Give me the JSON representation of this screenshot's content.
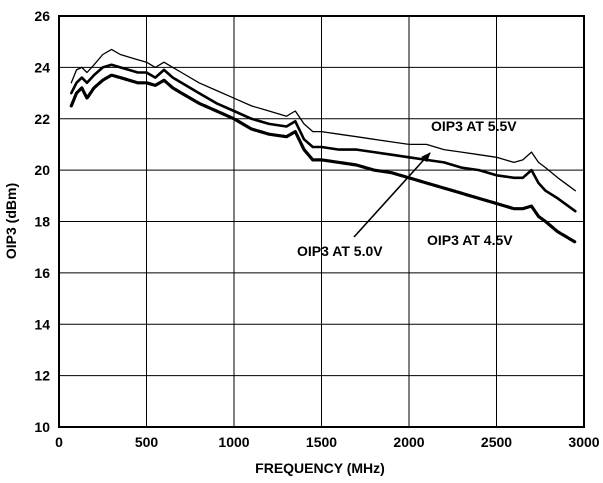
{
  "chart_data": {
    "type": "line",
    "title": "",
    "xlabel": "FREQUENCY (MHz)",
    "ylabel": "OIP3 (dBm)",
    "xlim": [
      0,
      3000
    ],
    "ylim": [
      10,
      26
    ],
    "xticks": [
      "0",
      "500",
      "1000",
      "1500",
      "2000",
      "2500",
      "3000"
    ],
    "yticks": [
      "10",
      "12",
      "14",
      "16",
      "18",
      "20",
      "22",
      "24",
      "26"
    ],
    "grid": true,
    "series": [
      {
        "name": "OIP3 AT 5.5V",
        "x": [
          70,
          100,
          130,
          160,
          200,
          250,
          300,
          350,
          400,
          450,
          500,
          550,
          600,
          650,
          700,
          800,
          900,
          1000,
          1100,
          1200,
          1300,
          1350,
          1400,
          1450,
          1500,
          1600,
          1700,
          1800,
          1900,
          2000,
          2100,
          2200,
          2300,
          2400,
          2500,
          2600,
          2650,
          2700,
          2740,
          2780,
          2850,
          2950
        ],
        "y": [
          23.4,
          23.9,
          24.0,
          23.8,
          24.1,
          24.5,
          24.7,
          24.5,
          24.4,
          24.3,
          24.2,
          24.0,
          24.2,
          24.0,
          23.8,
          23.4,
          23.1,
          22.8,
          22.5,
          22.3,
          22.1,
          22.3,
          21.8,
          21.5,
          21.5,
          21.4,
          21.3,
          21.2,
          21.1,
          21.0,
          21.0,
          20.8,
          20.7,
          20.6,
          20.5,
          20.3,
          20.4,
          20.7,
          20.3,
          20.1,
          19.7,
          19.2
        ]
      },
      {
        "name": "OIP3 AT 5.0V",
        "x": [
          70,
          100,
          130,
          160,
          200,
          250,
          300,
          350,
          400,
          450,
          500,
          550,
          600,
          650,
          700,
          800,
          900,
          1000,
          1100,
          1200,
          1300,
          1350,
          1400,
          1450,
          1500,
          1600,
          1700,
          1800,
          1900,
          2000,
          2100,
          2200,
          2300,
          2400,
          2500,
          2600,
          2650,
          2700,
          2740,
          2780,
          2850,
          2950
        ],
        "y": [
          23.0,
          23.4,
          23.6,
          23.4,
          23.7,
          24.0,
          24.1,
          24.0,
          23.9,
          23.8,
          23.8,
          23.6,
          23.9,
          23.6,
          23.4,
          23.0,
          22.6,
          22.3,
          22.0,
          21.8,
          21.7,
          21.9,
          21.2,
          20.9,
          20.9,
          20.8,
          20.8,
          20.7,
          20.6,
          20.5,
          20.4,
          20.3,
          20.1,
          20.0,
          19.8,
          19.7,
          19.7,
          20.0,
          19.5,
          19.2,
          18.9,
          18.4
        ]
      },
      {
        "name": "OIP3 AT 4.5V",
        "x": [
          70,
          100,
          130,
          160,
          200,
          250,
          300,
          350,
          400,
          450,
          500,
          550,
          600,
          650,
          700,
          800,
          900,
          1000,
          1100,
          1200,
          1300,
          1350,
          1400,
          1450,
          1500,
          1600,
          1700,
          1800,
          1900,
          2000,
          2100,
          2200,
          2300,
          2400,
          2500,
          2600,
          2650,
          2700,
          2740,
          2780,
          2850,
          2950
        ],
        "y": [
          22.5,
          23.0,
          23.2,
          22.8,
          23.2,
          23.5,
          23.7,
          23.6,
          23.5,
          23.4,
          23.4,
          23.3,
          23.5,
          23.2,
          23.0,
          22.6,
          22.3,
          22.0,
          21.6,
          21.4,
          21.3,
          21.5,
          20.8,
          20.4,
          20.4,
          20.3,
          20.2,
          20.0,
          19.9,
          19.7,
          19.5,
          19.3,
          19.1,
          18.9,
          18.7,
          18.5,
          18.5,
          18.6,
          18.2,
          18.0,
          17.6,
          17.2
        ]
      }
    ],
    "annotations": [
      "OIP3 AT 5.5V",
      "OIP3 AT 5.0V",
      "OIP3 AT 4.5V"
    ]
  }
}
